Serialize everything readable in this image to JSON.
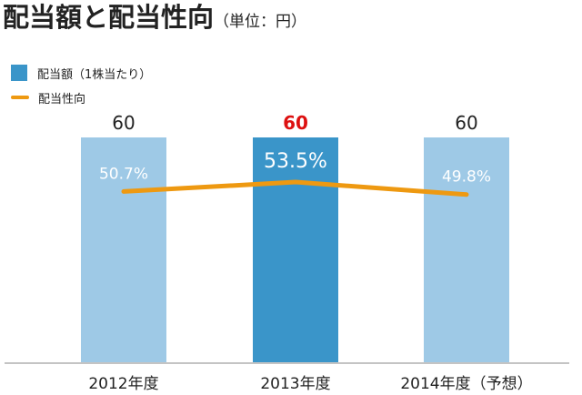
{
  "title": "配当額と配当性向",
  "unit": "（単位：円）",
  "chart_data": {
    "type": "bar",
    "categories": [
      "2012年度",
      "2013年度",
      "2014年度（予想）"
    ],
    "series": [
      {
        "name": "配当額（1株当たり）",
        "type": "bar",
        "values": [
          60,
          60,
          60
        ],
        "value_labels": [
          "60",
          "60",
          "60"
        ],
        "colors": [
          "#9ec9e6",
          "#3a95c9",
          "#9ec9e6"
        ],
        "label_colors": [
          "#222222",
          "#dd1111",
          "#222222"
        ]
      },
      {
        "name": "配当性向",
        "type": "line",
        "values": [
          50.7,
          53.5,
          49.8
        ],
        "value_labels": [
          "50.7%",
          "53.5%",
          "49.8%"
        ],
        "color": "#ee9911"
      }
    ],
    "highlight_index": 1,
    "bar_ylim": [
      0,
      60
    ],
    "ratio_ylim": [
      0,
      100
    ],
    "grid": false,
    "legend_position": "top-left"
  }
}
